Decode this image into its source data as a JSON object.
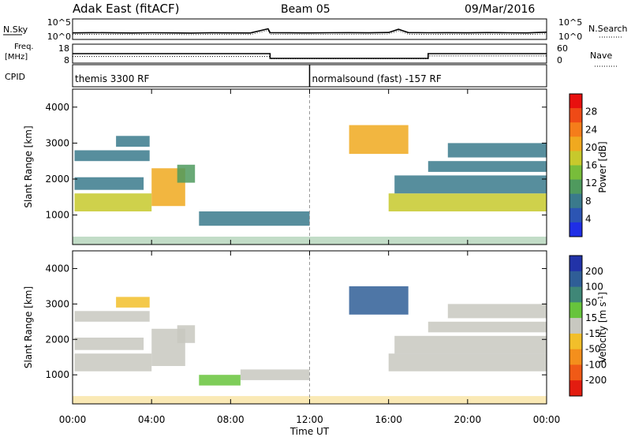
{
  "header": {
    "station": "Adak East (fitACF)",
    "beam": "Beam 05",
    "date": "09/Mar/2016"
  },
  "strips": {
    "nsky_label": "N.Sky",
    "nsky_ticks": [
      "10^5",
      "10^0"
    ],
    "nsearch_label": "N.Search",
    "nsearch_ticks": [
      "10^5",
      "10^0"
    ],
    "freq_label_1": "Freq.",
    "freq_label_2": "[MHz]",
    "freq_ticks": [
      "18",
      "8"
    ],
    "nave_label": "Nave",
    "nave_ticks": [
      "60",
      "0"
    ],
    "cpid_label": "CPID",
    "cpid_segments": [
      {
        "label": "themis 3300 RF",
        "start_hour": 0,
        "end_hour": 12
      },
      {
        "label": "normalsound (fast) -157 RF",
        "start_hour": 12,
        "end_hour": 24
      }
    ]
  },
  "axes": {
    "x_label": "Time UT",
    "x_ticks": [
      "00:00",
      "04:00",
      "08:00",
      "12:00",
      "16:00",
      "20:00",
      "00:00"
    ],
    "y_label": "Slant Range [km]",
    "y_ticks": [
      "1000",
      "2000",
      "3000",
      "4000"
    ]
  },
  "colorbars": {
    "power": {
      "label": "Power [dB]",
      "ticks": [
        "4",
        "8",
        "12",
        "16",
        "20",
        "24",
        "28"
      ],
      "colors": [
        "#1f2ee6",
        "#2c55b3",
        "#3a7a8c",
        "#4f9a5e",
        "#78bd3a",
        "#c7c92c",
        "#f0a91f",
        "#f57d1a",
        "#ef4a16",
        "#e8100e"
      ]
    },
    "velocity": {
      "label_prefix": "Velocity [m s",
      "label_exp": "-1",
      "label_suffix": "]",
      "ticks": [
        "200",
        "100",
        "50",
        "15",
        "-15",
        "-50",
        "-100",
        "-200"
      ],
      "colors": [
        "#2233a8",
        "#2f5e97",
        "#3f8777",
        "#67c43c",
        "#c8c8c0",
        "#f2bf2a",
        "#f48f1c",
        "#f05a16",
        "#e31c10"
      ]
    }
  },
  "chart_data": [
    {
      "type": "line",
      "title": "N.Sky / N.Search",
      "xlim": [
        0,
        24
      ],
      "y_scale": "log",
      "ylim": [
        1,
        100000
      ],
      "x": [
        0,
        1,
        2,
        3,
        4,
        5,
        6,
        7,
        8,
        9,
        9.9,
        10,
        11,
        12,
        13,
        14,
        15,
        16,
        16.5,
        17,
        18,
        19,
        20,
        21,
        22,
        23,
        24
      ],
      "values": [
        40,
        45,
        42,
        38,
        44,
        40,
        36,
        42,
        40,
        38,
        400,
        45,
        42,
        40,
        44,
        46,
        42,
        50,
        300,
        48,
        44,
        46,
        42,
        48,
        44,
        40,
        60
      ]
    },
    {
      "type": "line",
      "title": "Freq. / Nave",
      "xlim": [
        0,
        24
      ],
      "series": [
        {
          "x": [
            0,
            10,
            10,
            18,
            18,
            24
          ],
          "values": [
            13,
            13,
            10.5,
            10.5,
            13,
            13
          ]
        },
        {
          "x": [
            0,
            10,
            10,
            18,
            18,
            24
          ],
          "values": [
            11.5,
            11.5,
            10.3,
            10.3,
            11.8,
            11.8
          ]
        }
      ]
    },
    {
      "type": "heatmap",
      "xlim": [
        0,
        24
      ],
      "ylim": [
        180,
        4500
      ],
      "colorbar": "power",
      "regions": [
        {
          "t0": 0.1,
          "t1": 4.0,
          "r0": 1100,
          "r1": 1600,
          "value": 16
        },
        {
          "t0": 4.0,
          "t1": 5.7,
          "r0": 1250,
          "r1": 2300,
          "value": 18
        },
        {
          "t0": 0.1,
          "t1": 3.6,
          "r0": 1700,
          "r1": 2050,
          "value": 7
        },
        {
          "t0": 0.1,
          "t1": 3.9,
          "r0": 2500,
          "r1": 2800,
          "value": 6
        },
        {
          "t0": 2.2,
          "t1": 3.9,
          "r0": 2900,
          "r1": 3200,
          "value": 6
        },
        {
          "t0": 5.3,
          "t1": 6.2,
          "r0": 1900,
          "r1": 2400,
          "value": 9
        },
        {
          "t0": 6.4,
          "t1": 12.0,
          "r0": 700,
          "r1": 1100,
          "value": 7
        },
        {
          "t0": 16.0,
          "t1": 24.0,
          "r0": 1100,
          "r1": 1600,
          "value": 15
        },
        {
          "t0": 16.3,
          "t1": 24.0,
          "r0": 1600,
          "r1": 2100,
          "value": 8
        },
        {
          "t0": 18.0,
          "t1": 24.0,
          "r0": 2200,
          "r1": 2500,
          "value": 6
        },
        {
          "t0": 19.0,
          "t1": 24.0,
          "r0": 2600,
          "r1": 3000,
          "value": 6
        },
        {
          "t0": 14.0,
          "t1": 17.0,
          "r0": 2700,
          "r1": 3500,
          "value": 18
        },
        {
          "t0": 0.0,
          "t1": 24.0,
          "r0": 180,
          "r1": 400,
          "value": 10
        }
      ]
    },
    {
      "type": "heatmap",
      "xlim": [
        0,
        24
      ],
      "ylim": [
        180,
        4500
      ],
      "colorbar": "velocity",
      "regions": [
        {
          "t0": 0.1,
          "t1": 4.0,
          "r0": 1100,
          "r1": 1600,
          "value": 0
        },
        {
          "t0": 4.0,
          "t1": 5.7,
          "r0": 1250,
          "r1": 2300,
          "value": 0
        },
        {
          "t0": 0.1,
          "t1": 3.6,
          "r0": 1700,
          "r1": 2050,
          "value": 0
        },
        {
          "t0": 0.1,
          "t1": 3.9,
          "r0": 2500,
          "r1": 2800,
          "value": 0
        },
        {
          "t0": 2.2,
          "t1": 3.9,
          "r0": 2900,
          "r1": 3200,
          "value": -30
        },
        {
          "t0": 5.3,
          "t1": 6.2,
          "r0": 1900,
          "r1": 2400,
          "value": 0
        },
        {
          "t0": 6.4,
          "t1": 8.5,
          "r0": 700,
          "r1": 1000,
          "value": 40
        },
        {
          "t0": 8.5,
          "t1": 12.0,
          "r0": 850,
          "r1": 1150,
          "value": 0
        },
        {
          "t0": 16.0,
          "t1": 24.0,
          "r0": 1100,
          "r1": 1600,
          "value": 0
        },
        {
          "t0": 16.3,
          "t1": 24.0,
          "r0": 1600,
          "r1": 2100,
          "value": 0
        },
        {
          "t0": 18.0,
          "t1": 24.0,
          "r0": 2200,
          "r1": 2500,
          "value": 0
        },
        {
          "t0": 19.0,
          "t1": 24.0,
          "r0": 2600,
          "r1": 3000,
          "value": 0
        },
        {
          "t0": 14.0,
          "t1": 17.0,
          "r0": 2700,
          "r1": 3500,
          "value": 150
        },
        {
          "t0": 0.0,
          "t1": 24.0,
          "r0": 180,
          "r1": 400,
          "value": -40
        }
      ]
    }
  ]
}
